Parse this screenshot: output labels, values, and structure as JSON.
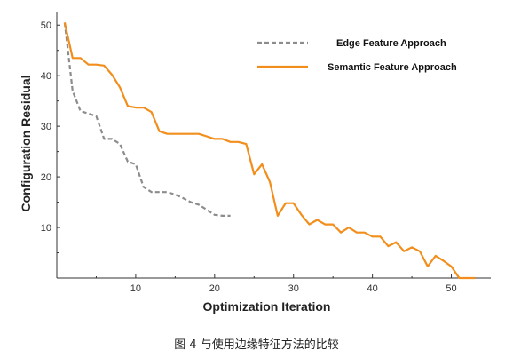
{
  "caption": "图 4 与使用边缘特征方法的比较",
  "chart_data": {
    "type": "line",
    "xlabel": "Optimization Iteration",
    "ylabel": "Configuration Residual",
    "xlim": [
      0,
      55
    ],
    "ylim": [
      0,
      52.5
    ],
    "xticks": [
      10,
      20,
      30,
      40,
      50
    ],
    "yticks": [
      10,
      20,
      30,
      40,
      50
    ],
    "grid": false,
    "legend": "top-right",
    "series": [
      {
        "name": "Edge Feature Approach",
        "color": "#8c8c8c",
        "style": "dashed",
        "x": [
          1,
          2,
          3,
          4,
          5,
          6,
          7,
          8,
          9,
          10,
          11,
          12,
          13,
          14,
          15,
          16,
          17,
          18,
          19,
          20,
          21,
          22
        ],
        "y": [
          50.5,
          37,
          33,
          32.5,
          32,
          27.5,
          27.5,
          26.5,
          23,
          22.5,
          18,
          17,
          17,
          17,
          16.5,
          15.8,
          15,
          14.5,
          13.5,
          12.5,
          12.3,
          12.3
        ]
      },
      {
        "name": "Semantic Feature Approach",
        "color": "#f28e1c",
        "style": "solid",
        "x": [
          1,
          2,
          3,
          4,
          5,
          6,
          7,
          8,
          9,
          10,
          11,
          12,
          13,
          14,
          15,
          16,
          17,
          18,
          19,
          20,
          21,
          22,
          23,
          24,
          25,
          26,
          27,
          28,
          29,
          30,
          31,
          32,
          33,
          34,
          35,
          36,
          37,
          38,
          39,
          40,
          41,
          42,
          43,
          44,
          45,
          46,
          47,
          48,
          49,
          50,
          51,
          52,
          53
        ],
        "y": [
          50.5,
          43.5,
          43.5,
          42.2,
          42.2,
          42,
          40.2,
          37.7,
          34,
          33.7,
          33.7,
          32.8,
          29,
          28.5,
          28.5,
          28.5,
          28.5,
          28.5,
          28,
          27.5,
          27.5,
          26.9,
          26.9,
          26.5,
          20.5,
          22.5,
          19,
          12.3,
          14.8,
          14.8,
          12.5,
          10.6,
          11.5,
          10.6,
          10.6,
          9,
          10,
          9,
          9,
          8.2,
          8.2,
          6.3,
          7.1,
          5.3,
          6.1,
          5.3,
          2.3,
          4.4,
          3.4,
          2.3,
          0,
          0,
          0
        ]
      }
    ]
  }
}
